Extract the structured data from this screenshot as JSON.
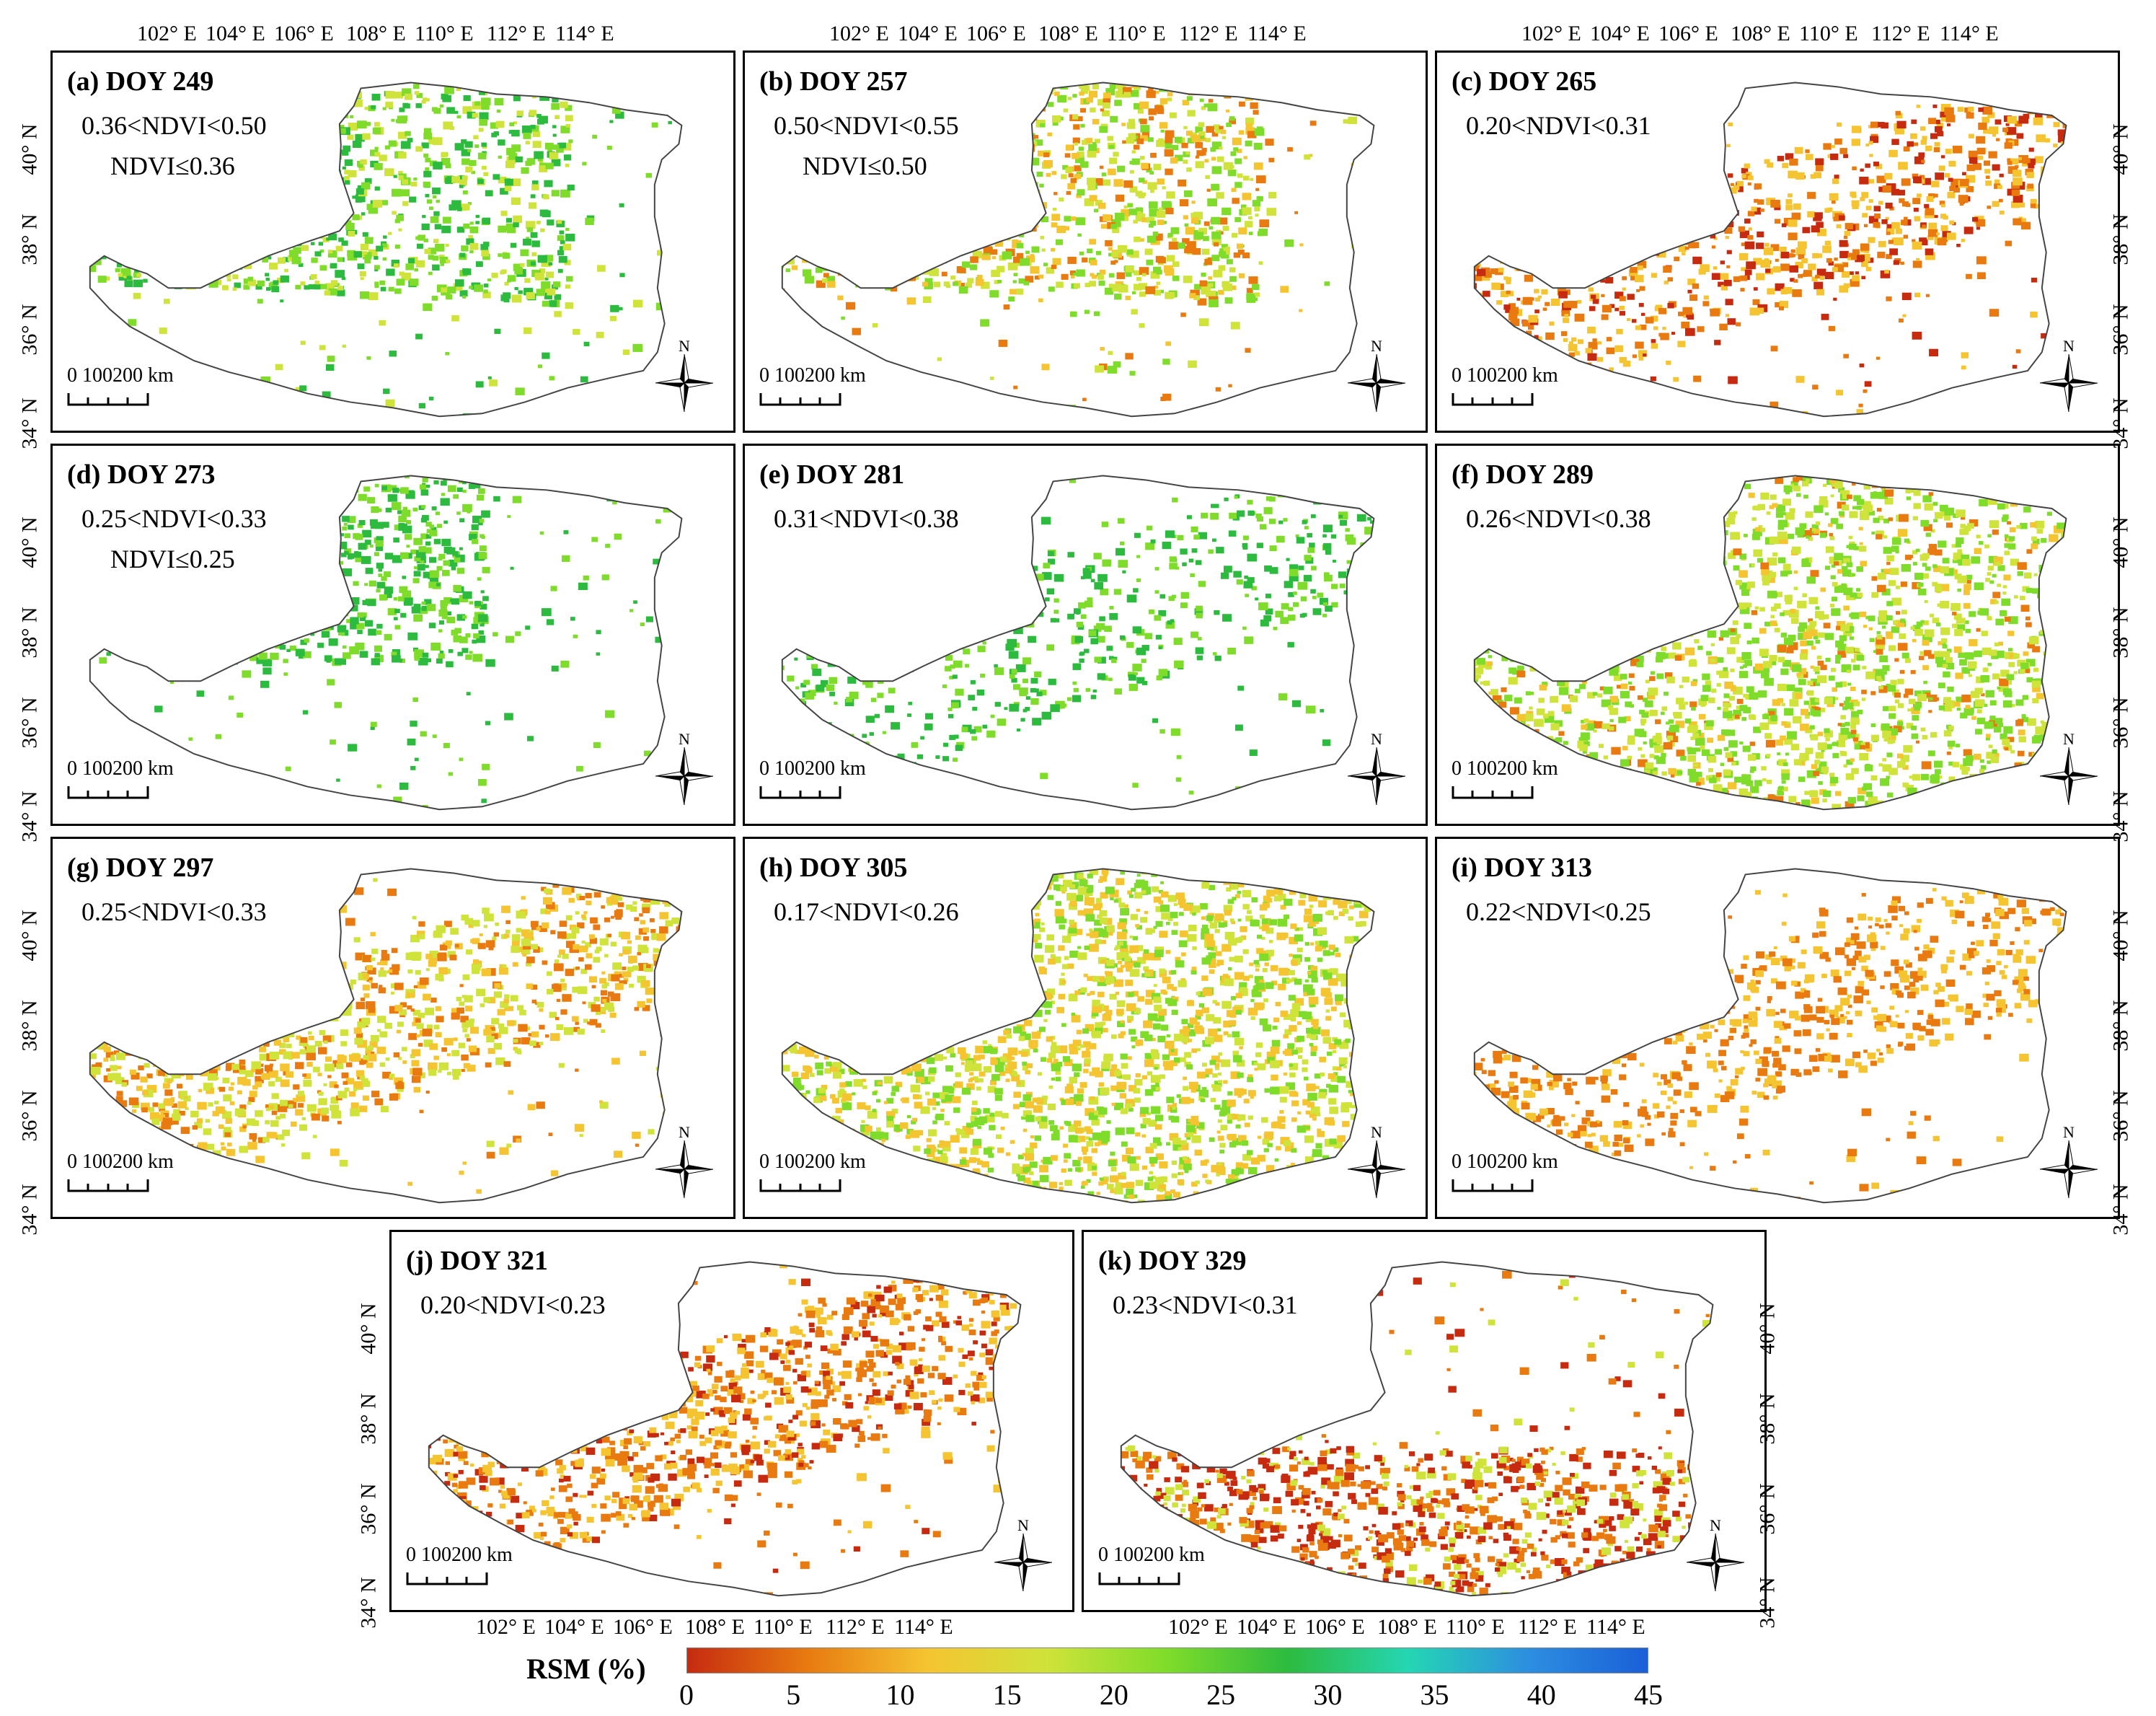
{
  "lon_ticks": [
    "102° E",
    "104° E",
    "106° E",
    "108° E",
    "110° E",
    "112° E",
    "114° E"
  ],
  "lat_ticks": [
    "40° N",
    "38° N",
    "36° N",
    "34° N"
  ],
  "scalebar_label": "0   100200 km",
  "north_label": "N",
  "panels": [
    {
      "title": "(a) DOY 249",
      "ndvi1": "0.36<NDVI<0.50",
      "ndvi2": "NDVI≤0.36"
    },
    {
      "title": "(b) DOY 257",
      "ndvi1": "0.50<NDVI<0.55",
      "ndvi2": "NDVI≤0.50"
    },
    {
      "title": "(c) DOY 265",
      "ndvi1": "0.20<NDVI<0.31",
      "ndvi2": ""
    },
    {
      "title": "(d) DOY 273",
      "ndvi1": "0.25<NDVI<0.33",
      "ndvi2": "NDVI≤0.25"
    },
    {
      "title": "(e) DOY 281",
      "ndvi1": "0.31<NDVI<0.38",
      "ndvi2": ""
    },
    {
      "title": "(f) DOY 289",
      "ndvi1": "0.26<NDVI<0.38",
      "ndvi2": ""
    },
    {
      "title": "(g) DOY 297",
      "ndvi1": "0.25<NDVI<0.33",
      "ndvi2": ""
    },
    {
      "title": "(h) DOY 305",
      "ndvi1": "0.17<NDVI<0.26",
      "ndvi2": ""
    },
    {
      "title": "(i) DOY 313",
      "ndvi1": "0.22<NDVI<0.25",
      "ndvi2": ""
    },
    {
      "title": "(j) DOY 321",
      "ndvi1": "0.20<NDVI<0.23",
      "ndvi2": ""
    },
    {
      "title": "(k) DOY 329",
      "ndvi1": "0.23<NDVI<0.31",
      "ndvi2": ""
    }
  ],
  "colorbar": {
    "title": "RSM (%)",
    "ticks": [
      "0",
      "5",
      "10",
      "15",
      "20",
      "25",
      "30",
      "35",
      "40",
      "45"
    ],
    "colors": [
      "#c62b10",
      "#e87a10",
      "#f5c431",
      "#cfe33a",
      "#7fdc2a",
      "#2dbb3f",
      "#25d6b3",
      "#2d8fe0",
      "#1a5fd8"
    ]
  }
}
